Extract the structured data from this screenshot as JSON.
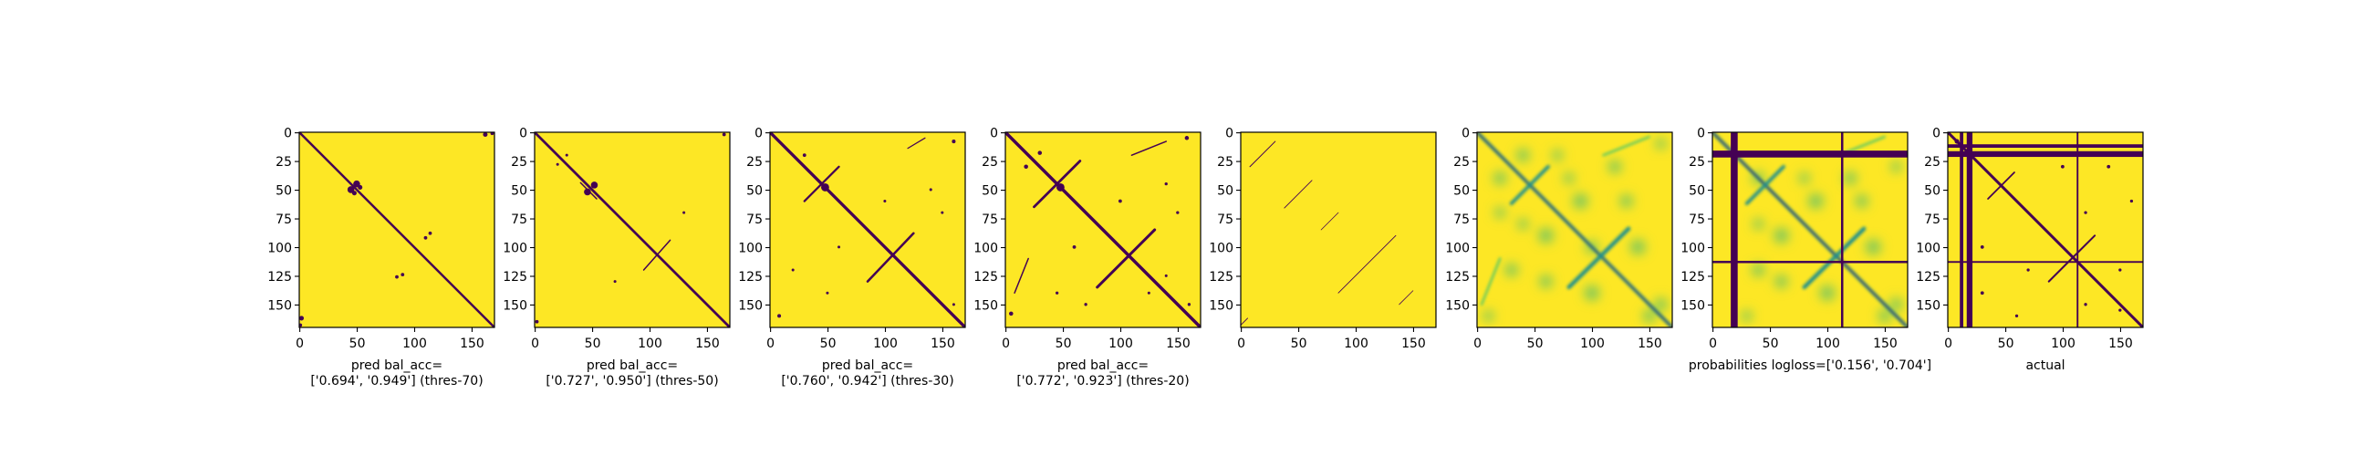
{
  "chart_data": [
    {
      "type": "heatmap",
      "kind": "binary",
      "caption": [
        "pred bal_acc=",
        "['0.694', '0.949'] (thres-70)"
      ],
      "x_ticks": [
        0,
        50,
        100,
        150
      ],
      "y_ticks": [
        0,
        25,
        50,
        75,
        100,
        125,
        150
      ],
      "xlim": [
        0,
        170
      ],
      "ylim": [
        170,
        0
      ],
      "colors": {
        "low": "#440154",
        "high": "#fde725"
      },
      "lines": [
        {
          "from": [
            0,
            0
          ],
          "to": [
            170,
            170
          ],
          "w": 2.0
        }
      ],
      "blobs": [
        [
          45,
          50,
          3
        ],
        [
          50,
          45,
          3
        ],
        [
          48,
          53,
          2
        ],
        [
          53,
          48,
          2
        ],
        [
          114,
          88,
          1.5
        ],
        [
          110,
          92,
          1.5
        ],
        [
          85,
          126,
          1.5
        ],
        [
          90,
          124,
          1.5
        ],
        [
          2,
          162,
          2
        ],
        [
          162,
          2,
          2
        ],
        [
          168,
          1,
          1.5
        ],
        [
          1,
          168,
          1.5
        ]
      ]
    },
    {
      "type": "heatmap",
      "kind": "binary",
      "caption": [
        "pred bal_acc=",
        "['0.727', '0.950'] (thres-50)"
      ],
      "x_ticks": [
        0,
        50,
        100,
        150
      ],
      "y_ticks": [
        0,
        25,
        50,
        75,
        100,
        125,
        150
      ],
      "xlim": [
        0,
        170
      ],
      "ylim": [
        170,
        0
      ],
      "colors": {
        "low": "#440154",
        "high": "#fde725"
      },
      "lines": [
        {
          "from": [
            0,
            0
          ],
          "to": [
            170,
            170
          ],
          "w": 2.2
        },
        {
          "from": [
            40,
            44
          ],
          "to": [
            54,
            58
          ],
          "w": 1.2
        },
        {
          "from": [
            95,
            120
          ],
          "to": [
            118,
            94
          ],
          "w": 1.2
        }
      ],
      "blobs": [
        [
          46,
          52,
          3
        ],
        [
          52,
          46,
          3
        ],
        [
          20,
          28,
          1.2
        ],
        [
          28,
          20,
          1.2
        ],
        [
          70,
          130,
          1.2
        ],
        [
          130,
          70,
          1.2
        ],
        [
          165,
          2,
          1.5
        ],
        [
          2,
          165,
          1.5
        ]
      ]
    },
    {
      "type": "heatmap",
      "kind": "binary",
      "caption": [
        "pred bal_acc=",
        "['0.760', '0.942'] (thres-30)"
      ],
      "x_ticks": [
        0,
        50,
        100,
        150
      ],
      "y_ticks": [
        0,
        25,
        50,
        75,
        100,
        125,
        150
      ],
      "xlim": [
        0,
        170
      ],
      "ylim": [
        170,
        0
      ],
      "colors": {
        "low": "#440154",
        "high": "#fde725"
      },
      "lines": [
        {
          "from": [
            0,
            0
          ],
          "to": [
            170,
            170
          ],
          "w": 2.6
        },
        {
          "from": [
            30,
            60
          ],
          "to": [
            60,
            30
          ],
          "w": 1.8
        },
        {
          "from": [
            85,
            130
          ],
          "to": [
            125,
            88
          ],
          "w": 2.0
        },
        {
          "from": [
            120,
            14
          ],
          "to": [
            135,
            5
          ],
          "w": 1.0
        }
      ],
      "blobs": [
        [
          48,
          48,
          3.5
        ],
        [
          30,
          20,
          1.5
        ],
        [
          140,
          50,
          1.2
        ],
        [
          150,
          70,
          1.2
        ],
        [
          50,
          140,
          1.2
        ],
        [
          20,
          120,
          1.2
        ],
        [
          160,
          150,
          1.2
        ],
        [
          8,
          160,
          1.6
        ],
        [
          160,
          8,
          1.6
        ],
        [
          100,
          60,
          1.2
        ],
        [
          60,
          100,
          1.2
        ]
      ]
    },
    {
      "type": "heatmap",
      "kind": "binary",
      "caption": [
        "pred bal_acc=",
        "['0.772', '0.923'] (thres-20)"
      ],
      "x_ticks": [
        0,
        50,
        100,
        150
      ],
      "y_ticks": [
        0,
        25,
        50,
        75,
        100,
        125,
        150
      ],
      "xlim": [
        0,
        170
      ],
      "ylim": [
        170,
        0
      ],
      "colors": {
        "low": "#440154",
        "high": "#fde725"
      },
      "lines": [
        {
          "from": [
            0,
            0
          ],
          "to": [
            170,
            170
          ],
          "w": 2.8
        },
        {
          "from": [
            25,
            65
          ],
          "to": [
            65,
            25
          ],
          "w": 2.2
        },
        {
          "from": [
            80,
            135
          ],
          "to": [
            130,
            85
          ],
          "w": 2.4
        },
        {
          "from": [
            110,
            20
          ],
          "to": [
            140,
            8
          ],
          "w": 1.2
        },
        {
          "from": [
            20,
            110
          ],
          "to": [
            8,
            140
          ],
          "w": 1.2
        }
      ],
      "blobs": [
        [
          48,
          48,
          3.5
        ],
        [
          30,
          18,
          1.8
        ],
        [
          18,
          30,
          1.8
        ],
        [
          140,
          45,
          1.3
        ],
        [
          150,
          70,
          1.3
        ],
        [
          45,
          140,
          1.3
        ],
        [
          70,
          150,
          1.3
        ],
        [
          160,
          150,
          1.3
        ],
        [
          100,
          60,
          1.5
        ],
        [
          60,
          100,
          1.5
        ],
        [
          5,
          158,
          1.8
        ],
        [
          158,
          5,
          1.8
        ],
        [
          125,
          140,
          1.2
        ],
        [
          140,
          125,
          1.2
        ]
      ]
    },
    {
      "type": "heatmap",
      "kind": "binary",
      "caption": [],
      "x_ticks": [
        0,
        50,
        100,
        150
      ],
      "y_ticks": [
        0,
        25,
        50,
        75,
        100,
        125,
        150
      ],
      "xlim": [
        0,
        170
      ],
      "ylim": [
        170,
        0
      ],
      "colors": {
        "low": "#440154",
        "high": "#fde725"
      },
      "lines": [
        {
          "from": [
            8,
            30
          ],
          "to": [
            30,
            8
          ],
          "w": 0.8
        },
        {
          "from": [
            38,
            66
          ],
          "to": [
            62,
            42
          ],
          "w": 0.7
        },
        {
          "from": [
            70,
            85
          ],
          "to": [
            85,
            70
          ],
          "w": 0.6
        },
        {
          "from": [
            85,
            140
          ],
          "to": [
            135,
            90
          ],
          "w": 0.7
        },
        {
          "from": [
            138,
            150
          ],
          "to": [
            150,
            138
          ],
          "w": 0.6
        },
        {
          "from": [
            0,
            168
          ],
          "to": [
            6,
            162
          ],
          "w": 0.7
        }
      ],
      "blobs": []
    },
    {
      "type": "heatmap",
      "kind": "probability",
      "caption": [],
      "x_ticks": [
        0,
        50,
        100,
        150
      ],
      "y_ticks": [
        0,
        25,
        50,
        75,
        100,
        125,
        150
      ],
      "xlim": [
        0,
        170
      ],
      "ylim": [
        170,
        0
      ],
      "colors": {
        "low": "#440154",
        "mid": "#21918c",
        "light": "#5ec962",
        "high": "#fde725"
      },
      "lines": [
        {
          "from": [
            0,
            0
          ],
          "to": [
            170,
            170
          ],
          "w": 3.0,
          "color": "mid"
        },
        {
          "from": [
            0,
            0
          ],
          "to": [
            170,
            170
          ],
          "w": 1.0,
          "color": "low"
        },
        {
          "from": [
            30,
            62
          ],
          "to": [
            62,
            30
          ],
          "w": 3.0,
          "color": "mid"
        },
        {
          "from": [
            80,
            135
          ],
          "to": [
            132,
            84
          ],
          "w": 3.5,
          "color": "mid"
        },
        {
          "from": [
            110,
            20
          ],
          "to": [
            150,
            4
          ],
          "w": 2.0,
          "color": "light"
        },
        {
          "from": [
            20,
            110
          ],
          "to": [
            4,
            150
          ],
          "w": 2.0,
          "color": "light"
        }
      ],
      "blobs": [
        [
          20,
          40,
          6
        ],
        [
          40,
          20,
          6
        ],
        [
          60,
          90,
          7
        ],
        [
          90,
          60,
          7
        ],
        [
          120,
          30,
          6
        ],
        [
          30,
          120,
          6
        ],
        [
          140,
          100,
          7
        ],
        [
          100,
          140,
          7
        ],
        [
          150,
          160,
          6
        ],
        [
          160,
          150,
          6
        ],
        [
          70,
          20,
          5
        ],
        [
          20,
          70,
          5
        ],
        [
          130,
          60,
          6
        ],
        [
          60,
          130,
          6
        ],
        [
          10,
          160,
          5
        ],
        [
          160,
          10,
          5
        ],
        [
          100,
          100,
          6
        ],
        [
          80,
          40,
          5
        ],
        [
          40,
          80,
          5
        ]
      ]
    },
    {
      "type": "heatmap",
      "kind": "probability",
      "caption": [
        "probabilities logloss=['0.156', '0.704']"
      ],
      "x_ticks": [
        0,
        50,
        100,
        150
      ],
      "y_ticks": [
        0,
        25,
        50,
        75,
        100,
        125,
        150
      ],
      "xlim": [
        0,
        170
      ],
      "ylim": [
        170,
        0
      ],
      "colors": {
        "low": "#440154",
        "mid": "#21918c",
        "light": "#5ec962",
        "high": "#fde725"
      },
      "bands": [
        {
          "orient": "v",
          "at": 19,
          "w": 6
        },
        {
          "orient": "h",
          "at": 19,
          "w": 6
        },
        {
          "orient": "v",
          "at": 113,
          "w": 2
        },
        {
          "orient": "h",
          "at": 113,
          "w": 2
        }
      ],
      "lines": [
        {
          "from": [
            0,
            0
          ],
          "to": [
            170,
            170
          ],
          "w": 3.0,
          "color": "mid"
        },
        {
          "from": [
            0,
            0
          ],
          "to": [
            170,
            170
          ],
          "w": 1.2,
          "color": "low"
        },
        {
          "from": [
            30,
            62
          ],
          "to": [
            62,
            30
          ],
          "w": 3.0,
          "color": "mid"
        },
        {
          "from": [
            80,
            135
          ],
          "to": [
            132,
            84
          ],
          "w": 3.5,
          "color": "mid"
        },
        {
          "from": [
            110,
            20
          ],
          "to": [
            150,
            4
          ],
          "w": 2.0,
          "color": "light"
        }
      ],
      "blobs": [
        [
          40,
          40,
          6
        ],
        [
          60,
          90,
          7
        ],
        [
          90,
          60,
          7
        ],
        [
          120,
          40,
          6
        ],
        [
          40,
          120,
          6
        ],
        [
          140,
          100,
          7
        ],
        [
          100,
          140,
          7
        ],
        [
          150,
          160,
          6
        ],
        [
          160,
          150,
          6
        ],
        [
          130,
          60,
          6
        ],
        [
          60,
          130,
          6
        ],
        [
          80,
          40,
          5
        ],
        [
          40,
          80,
          5
        ],
        [
          160,
          30,
          5
        ],
        [
          30,
          160,
          5
        ]
      ]
    },
    {
      "type": "heatmap",
      "kind": "binary",
      "caption": [
        "actual"
      ],
      "x_ticks": [
        0,
        50,
        100,
        150
      ],
      "y_ticks": [
        0,
        25,
        50,
        75,
        100,
        125,
        150
      ],
      "xlim": [
        0,
        170
      ],
      "ylim": [
        170,
        0
      ],
      "colors": {
        "low": "#440154",
        "high": "#fde725"
      },
      "bands": [
        {
          "orient": "v",
          "at": 12,
          "w": 3
        },
        {
          "orient": "h",
          "at": 12,
          "w": 3
        },
        {
          "orient": "v",
          "at": 19,
          "w": 5
        },
        {
          "orient": "h",
          "at": 19,
          "w": 5
        },
        {
          "orient": "v",
          "at": 113,
          "w": 1.5
        },
        {
          "orient": "h",
          "at": 113,
          "w": 1.5
        }
      ],
      "lines": [
        {
          "from": [
            0,
            0
          ],
          "to": [
            170,
            170
          ],
          "w": 2.4
        },
        {
          "from": [
            35,
            58
          ],
          "to": [
            58,
            35
          ],
          "w": 1.4
        },
        {
          "from": [
            88,
            130
          ],
          "to": [
            128,
            90
          ],
          "w": 1.6
        }
      ],
      "blobs": [
        [
          100,
          30,
          1.5
        ],
        [
          30,
          100,
          1.5
        ],
        [
          140,
          30,
          1.5
        ],
        [
          30,
          140,
          1.5
        ],
        [
          150,
          120,
          1.3
        ],
        [
          120,
          150,
          1.3
        ],
        [
          70,
          120,
          1.3
        ],
        [
          120,
          70,
          1.3
        ],
        [
          160,
          60,
          1.3
        ],
        [
          60,
          160,
          1.3
        ],
        [
          8,
          8,
          2.0
        ],
        [
          150,
          155,
          1.3
        ]
      ]
    }
  ]
}
